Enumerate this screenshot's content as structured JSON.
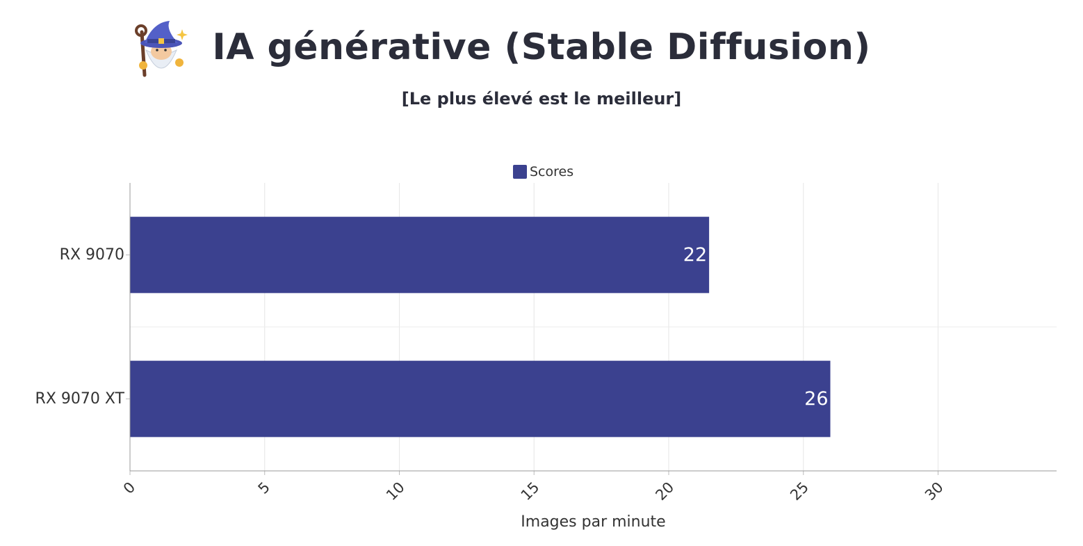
{
  "header": {
    "title": "IA générative (Stable Diffusion)",
    "subtitle": "[Le plus élevé est le meilleur]",
    "mascot_icon": "wizard-icon"
  },
  "chart_data": {
    "type": "bar",
    "orientation": "horizontal",
    "categories": [
      "RX 9070",
      "RX 9070 XT"
    ],
    "series": [
      {
        "name": "Scores",
        "values": [
          21.5,
          26
        ],
        "labels": [
          "22",
          "26"
        ],
        "color": "#3b418f"
      }
    ],
    "xlabel": "Images par minute",
    "xlim": [
      0,
      34.4
    ],
    "xticks": [
      0,
      5,
      10,
      15,
      20,
      25,
      30
    ],
    "grid": true,
    "legend_position": "top-center"
  }
}
